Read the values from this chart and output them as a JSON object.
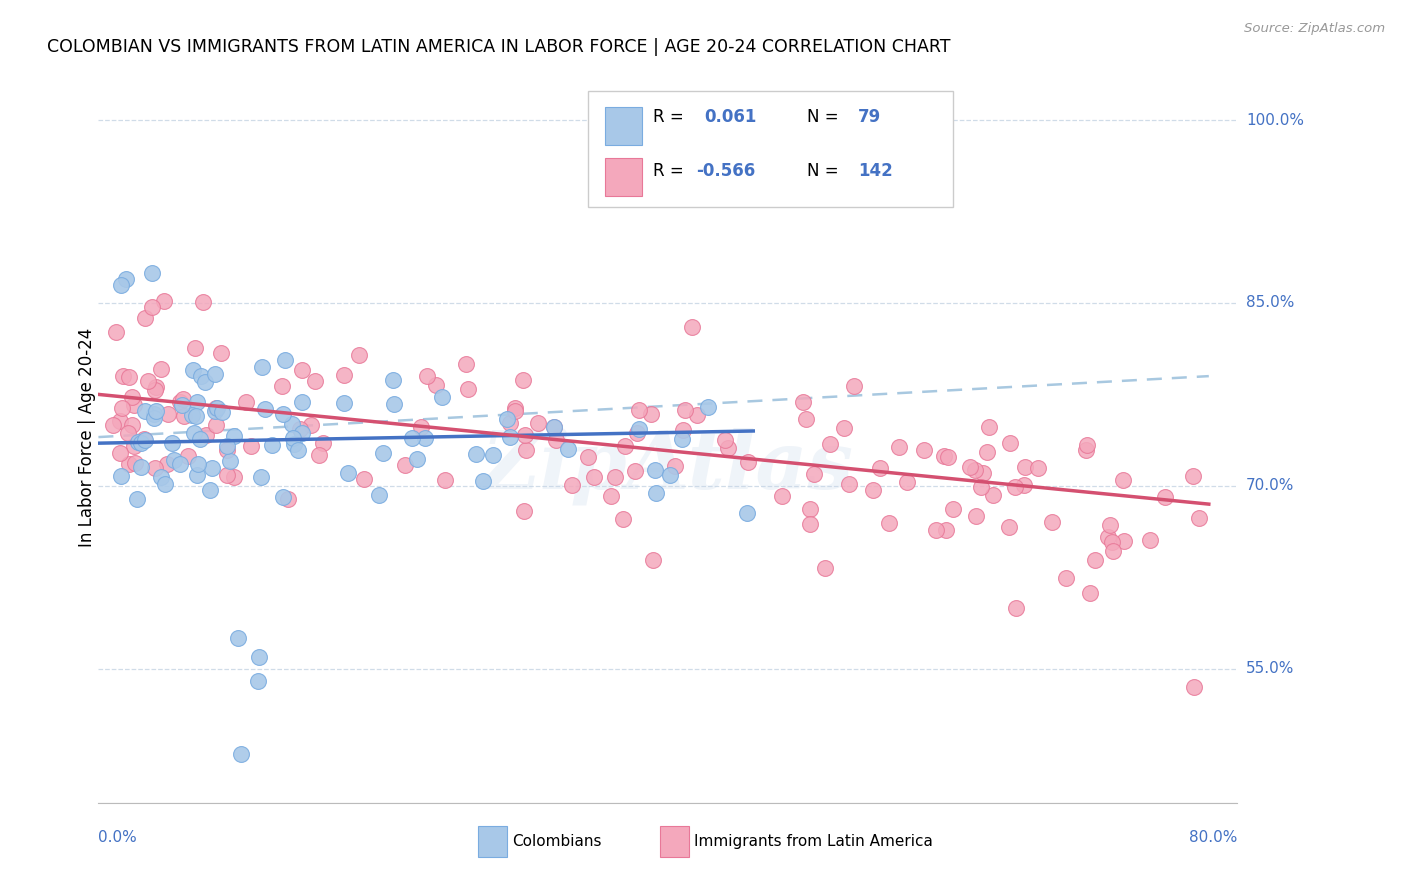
{
  "title": "COLOMBIAN VS IMMIGRANTS FROM LATIN AMERICA IN LABOR FORCE | AGE 20-24 CORRELATION CHART",
  "source": "Source: ZipAtlas.com",
  "ylabel": "In Labor Force | Age 20-24",
  "ytick_values": [
    0.55,
    0.7,
    0.85,
    1.0
  ],
  "ytick_labels": [
    "55.0%",
    "70.0%",
    "85.0%",
    "100.0%"
  ],
  "legend_colombians": "Colombians",
  "legend_latin": "Immigrants from Latin America",
  "r_colombians": "0.061",
  "n_colombians": "79",
  "r_latin": "-0.566",
  "n_latin": "142",
  "color_colombian": "#a8c8e8",
  "color_latin": "#f4a8bc",
  "color_colombian_edge": "#7aace0",
  "color_latin_edge": "#e87898",
  "color_colombian_line": "#4472c4",
  "color_latin_line": "#d45070",
  "color_dashed_line": "#a8c8e0",
  "color_blue_text": "#4472c4",
  "watermark": "ZipAtlas",
  "xmin": 0.0,
  "xmax": 0.8,
  "ymin": 0.44,
  "ymax": 1.04,
  "colombian_seed": 12345,
  "latin_seed": 67890,
  "blue_line_x0": 0.0,
  "blue_line_y0": 0.735,
  "blue_line_x1": 0.46,
  "blue_line_y1": 0.745,
  "pink_line_x0": 0.0,
  "pink_line_y0": 0.775,
  "pink_line_x1": 0.78,
  "pink_line_y1": 0.685,
  "dash_line_x0": 0.0,
  "dash_line_y0": 0.74,
  "dash_line_x1": 0.78,
  "dash_line_y1": 0.79
}
